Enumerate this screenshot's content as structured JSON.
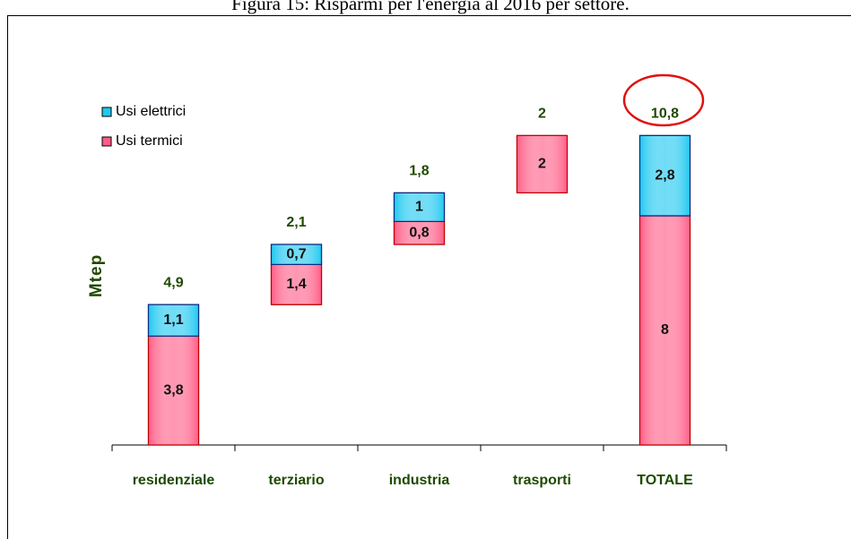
{
  "chart_data": {
    "type": "waterfall",
    "title": "Figura 15: Risparmi per l'energia al 2016 per settore.",
    "ylabel": "Mtep",
    "categories": [
      "residenziale",
      "terziario",
      "industria",
      "trasporti",
      "TOTALE"
    ],
    "series": [
      {
        "name": "Usi termici",
        "color": "#ff5c86",
        "values": [
          3.8,
          1.4,
          0.8,
          2,
          8
        ],
        "value_labels": [
          "3,8",
          "1,4",
          "0,8",
          "2",
          "8"
        ]
      },
      {
        "name": "Usi elettrici",
        "color": "#1ec8f0",
        "values": [
          1.1,
          0.7,
          1,
          null,
          2.8
        ],
        "value_labels": [
          "1,1",
          "0,7",
          "1",
          null,
          "2,8"
        ]
      }
    ],
    "totals": [
      4.9,
      2.1,
      1.8,
      2,
      10.8
    ],
    "totals_labels": [
      "4,9",
      "2,1",
      "1,8",
      "2",
      "10,8"
    ],
    "ylim": [
      0,
      12
    ]
  }
}
